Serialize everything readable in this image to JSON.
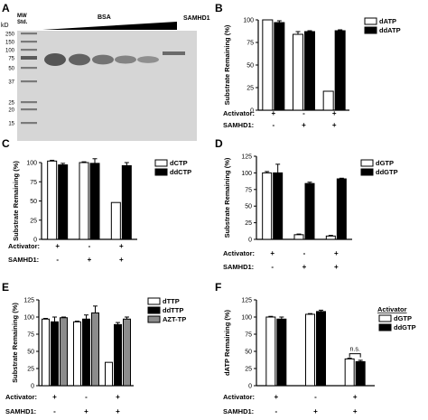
{
  "figure": {
    "panels": [
      {
        "letter": "A",
        "kind": "gel"
      },
      {
        "letter": "B",
        "kind": "bar"
      },
      {
        "letter": "C",
        "kind": "bar"
      },
      {
        "letter": "D",
        "kind": "bar"
      },
      {
        "letter": "E",
        "kind": "bar"
      },
      {
        "letter": "F",
        "kind": "bar"
      }
    ]
  },
  "gel": {
    "kd_label": "kD",
    "mw_label": "MW\nStd.",
    "ladder": [
      "250",
      "150",
      "100",
      "75",
      "50",
      "37",
      "25",
      "20",
      "15"
    ],
    "bsa_label": "BSA",
    "samhd1_label": "SAMHD1",
    "bsa_band_intensity": [
      1.0,
      0.85,
      0.65,
      0.45,
      0.3
    ],
    "colors": {
      "gel": "#d9d9d9",
      "band": "#555555"
    }
  },
  "chart_data": [
    {
      "panel": "B",
      "type": "bar",
      "ylabel": "Substrate Remaining (%)",
      "ylim": [
        0,
        100
      ],
      "yticks": [
        0,
        25,
        50,
        75,
        100
      ],
      "series": [
        {
          "name": "dATP",
          "fill": "#ffffff",
          "values": [
            100,
            84,
            21
          ],
          "errors": [
            0,
            3,
            0
          ]
        },
        {
          "name": "ddATP",
          "fill": "#000000",
          "values": [
            97,
            87,
            88
          ],
          "errors": [
            2,
            1,
            1
          ]
        }
      ],
      "condition_rows": [
        {
          "label": "Activator:",
          "values": [
            "+",
            "-",
            "+"
          ]
        },
        {
          "label": "SAMHD1:",
          "values": [
            "-",
            "+",
            "+"
          ]
        }
      ],
      "legend": "top-right"
    },
    {
      "panel": "C",
      "type": "bar",
      "ylabel": "Substrate Remaining (%)",
      "ylim": [
        0,
        100
      ],
      "yticks": [
        0,
        25,
        50,
        75,
        100
      ],
      "series": [
        {
          "name": "dCTP",
          "fill": "#ffffff",
          "values": [
            102,
            100,
            48
          ],
          "errors": [
            1,
            1,
            0
          ]
        },
        {
          "name": "ddCTP",
          "fill": "#000000",
          "values": [
            97,
            99,
            96
          ],
          "errors": [
            2,
            6,
            4
          ]
        }
      ],
      "condition_rows": [
        {
          "label": "Activator:",
          "values": [
            "+",
            "-",
            "+"
          ]
        },
        {
          "label": "SAMHD1:",
          "values": [
            "-",
            "+",
            "+"
          ]
        }
      ],
      "legend": "top-right"
    },
    {
      "panel": "D",
      "type": "bar",
      "ylabel": "Substrate Remaining (%)",
      "ylim": [
        0,
        125
      ],
      "yticks": [
        0,
        25,
        50,
        75,
        100,
        125
      ],
      "series": [
        {
          "name": "dGTP",
          "fill": "#ffffff",
          "values": [
            100,
            7,
            5
          ],
          "errors": [
            2,
            1,
            1
          ]
        },
        {
          "name": "ddGTP",
          "fill": "#000000",
          "values": [
            100,
            84,
            91
          ],
          "errors": [
            13,
            2,
            1
          ]
        }
      ],
      "condition_rows": [
        {
          "label": "Activator:",
          "values": [
            "+",
            "-",
            "+"
          ]
        },
        {
          "label": "SAMHD1:",
          "values": [
            "-",
            "+",
            "+"
          ]
        }
      ],
      "legend": "top-right"
    },
    {
      "panel": "E",
      "type": "bar",
      "ylabel": "Substrate Remaining (%)",
      "ylim": [
        0,
        125
      ],
      "yticks": [
        0,
        25,
        50,
        75,
        100,
        125
      ],
      "series": [
        {
          "name": "dTTP",
          "fill": "#ffffff",
          "values": [
            97,
            93,
            34
          ],
          "errors": [
            1,
            1,
            0
          ]
        },
        {
          "name": "ddTTP",
          "fill": "#000000",
          "values": [
            93,
            97,
            89
          ],
          "errors": [
            7,
            6,
            3
          ]
        },
        {
          "name": "AZT-TP",
          "fill": "#8c8c8c",
          "values": [
            99,
            106,
            97
          ],
          "errors": [
            1,
            10,
            3
          ]
        }
      ],
      "condition_rows": [
        {
          "label": "Activator:",
          "values": [
            "+",
            "-",
            "+"
          ]
        },
        {
          "label": "SAMHD1:",
          "values": [
            "-",
            "+",
            "+"
          ]
        }
      ],
      "legend": "top-right"
    },
    {
      "panel": "F",
      "type": "bar",
      "ylabel": "dATP Remaining (%)",
      "ylim": [
        0,
        125
      ],
      "yticks": [
        0,
        25,
        50,
        75,
        100,
        125
      ],
      "series": [
        {
          "name": "dGTP",
          "fill": "#ffffff",
          "values": [
            100,
            104,
            39
          ],
          "errors": [
            1,
            1,
            1
          ]
        },
        {
          "name": "ddGTP",
          "fill": "#000000",
          "values": [
            97,
            108,
            35
          ],
          "errors": [
            3,
            2,
            2
          ]
        }
      ],
      "condition_rows": [
        {
          "label": "Activator:",
          "values": [
            "+",
            "-",
            "+"
          ]
        },
        {
          "label": "SAMHD1:",
          "values": [
            "-",
            "+",
            "+"
          ]
        }
      ],
      "legend_title": "Activator",
      "annotation": "n.s.",
      "legend": "top-right"
    }
  ]
}
